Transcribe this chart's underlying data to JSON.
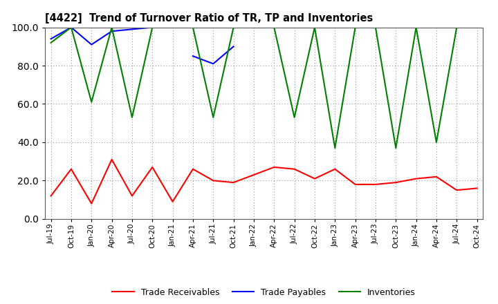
{
  "title": "[4422]  Trend of Turnover Ratio of TR, TP and Inventories",
  "xlabels": [
    "Jul-19",
    "Oct-19",
    "Jan-20",
    "Apr-20",
    "Jul-20",
    "Oct-20",
    "Jan-21",
    "Apr-21",
    "Jul-21",
    "Oct-21",
    "Jan-22",
    "Apr-22",
    "Jul-22",
    "Oct-22",
    "Jan-23",
    "Apr-23",
    "Jul-23",
    "Oct-23",
    "Jan-24",
    "Apr-24",
    "Jul-24",
    "Oct-24"
  ],
  "trade_receivables": [
    12,
    26,
    8,
    31,
    12,
    27,
    9,
    26,
    20,
    19,
    23,
    27,
    26,
    21,
    26,
    18,
    18,
    19,
    21,
    22,
    15,
    16
  ],
  "trade_payables": [
    94,
    100,
    91,
    98,
    99,
    100,
    null,
    85,
    81,
    90,
    null,
    null,
    null,
    null,
    null,
    null,
    null,
    null,
    null,
    null,
    null,
    null
  ],
  "inventories": [
    92,
    100,
    61,
    100,
    53,
    100,
    100,
    100,
    53,
    100,
    100,
    100,
    53,
    100,
    37,
    100,
    100,
    37,
    100,
    40,
    100,
    100
  ],
  "ylim": [
    0,
    100
  ],
  "yticks": [
    0.0,
    20.0,
    40.0,
    60.0,
    80.0,
    100.0
  ],
  "tr_color": "#ff0000",
  "tp_color": "#0000ff",
  "inv_color": "#008000",
  "legend_labels": [
    "Trade Receivables",
    "Trade Payables",
    "Inventories"
  ],
  "background_color": "#ffffff",
  "grid_color": "#808080"
}
